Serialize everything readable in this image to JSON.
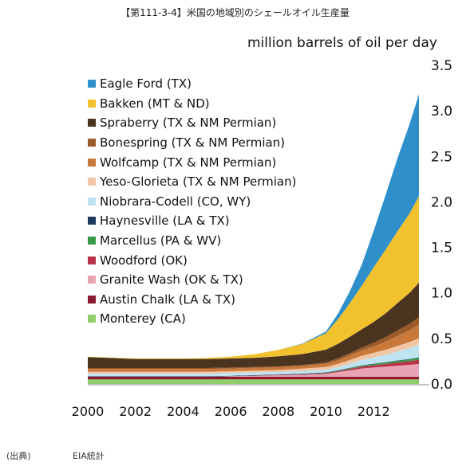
{
  "title": "【第111-3-4】米国の地域別のシェールオイル生産量",
  "source": {
    "label": "(出典)",
    "value": "EIA統計"
  },
  "chart_data": {
    "type": "area",
    "stacked": true,
    "ylabel": "million barrels of oil per day",
    "xlabel": "",
    "xlim": [
      2000,
      2014
    ],
    "ylim": [
      0,
      3.5
    ],
    "y_ticks": [
      "0.0",
      "0.5",
      "1.0",
      "1.5",
      "2.0",
      "2.5",
      "3.0",
      "3.5"
    ],
    "x_ticks": [
      "2000",
      "2002",
      "2004",
      "2006",
      "2008",
      "2010",
      "2012"
    ],
    "grid": false,
    "legend_position": "top-left",
    "x": [
      2000,
      2001,
      2002,
      2003,
      2004,
      2005,
      2006,
      2007,
      2008,
      2009,
      2010,
      2010.5,
      2011,
      2011.5,
      2012,
      2012.5,
      2013,
      2013.5,
      2013.9
    ],
    "series": [
      {
        "name": "Monterey (CA)",
        "color": "#8fcf6b",
        "values": [
          0.05,
          0.05,
          0.05,
          0.05,
          0.05,
          0.05,
          0.05,
          0.05,
          0.05,
          0.05,
          0.05,
          0.05,
          0.05,
          0.05,
          0.05,
          0.05,
          0.05,
          0.05,
          0.05
        ]
      },
      {
        "name": "Austin Chalk (LA & TX)",
        "color": "#8b1a2e",
        "values": [
          0.03,
          0.03,
          0.03,
          0.03,
          0.03,
          0.03,
          0.03,
          0.03,
          0.03,
          0.03,
          0.03,
          0.03,
          0.03,
          0.03,
          0.03,
          0.03,
          0.03,
          0.03,
          0.03
        ]
      },
      {
        "name": "Granite Wash (OK & TX)",
        "color": "#e8a4b4",
        "values": [
          0.0,
          0.0,
          0.0,
          0.0,
          0.0,
          0.0,
          0.005,
          0.01,
          0.015,
          0.02,
          0.03,
          0.05,
          0.07,
          0.09,
          0.1,
          0.11,
          0.12,
          0.13,
          0.14
        ]
      },
      {
        "name": "Woodford (OK)",
        "color": "#b8324a",
        "values": [
          0.0,
          0.0,
          0.0,
          0.0,
          0.0,
          0.0,
          0.0,
          0.002,
          0.004,
          0.006,
          0.008,
          0.01,
          0.015,
          0.02,
          0.025,
          0.03,
          0.035,
          0.04,
          0.045
        ]
      },
      {
        "name": "Marcellus (PA & WV)",
        "color": "#3a9a4a",
        "values": [
          0.0,
          0.0,
          0.0,
          0.0,
          0.0,
          0.0,
          0.0,
          0.0,
          0.0,
          0.002,
          0.004,
          0.006,
          0.008,
          0.01,
          0.012,
          0.015,
          0.018,
          0.02,
          0.022
        ]
      },
      {
        "name": "Haynesville (LA & TX)",
        "color": "#1b3a5c",
        "values": [
          0.005,
          0.005,
          0.005,
          0.005,
          0.005,
          0.005,
          0.005,
          0.005,
          0.005,
          0.005,
          0.005,
          0.005,
          0.005,
          0.005,
          0.005,
          0.005,
          0.005,
          0.005,
          0.005
        ]
      },
      {
        "name": "Niobrara-Codell (CO, WY)",
        "color": "#bfe3f0",
        "values": [
          0.03,
          0.03,
          0.03,
          0.03,
          0.03,
          0.03,
          0.03,
          0.03,
          0.03,
          0.03,
          0.03,
          0.035,
          0.045,
          0.06,
          0.07,
          0.08,
          0.1,
          0.12,
          0.14
        ]
      },
      {
        "name": "Yeso-Glorieta (TX & NM Permian)",
        "color": "#f2c6a4",
        "values": [
          0.02,
          0.02,
          0.02,
          0.02,
          0.02,
          0.02,
          0.02,
          0.02,
          0.02,
          0.025,
          0.03,
          0.035,
          0.04,
          0.045,
          0.05,
          0.055,
          0.06,
          0.065,
          0.07
        ]
      },
      {
        "name": "Wolfcamp (TX & NM Permian)",
        "color": "#c8783a",
        "values": [
          0.03,
          0.03,
          0.03,
          0.03,
          0.03,
          0.03,
          0.03,
          0.03,
          0.03,
          0.03,
          0.035,
          0.04,
          0.05,
          0.06,
          0.07,
          0.09,
          0.11,
          0.13,
          0.15
        ]
      },
      {
        "name": "Bonespring (TX & NM Permian)",
        "color": "#9a5a2a",
        "values": [
          0.01,
          0.01,
          0.01,
          0.01,
          0.01,
          0.01,
          0.01,
          0.01,
          0.01,
          0.01,
          0.015,
          0.02,
          0.025,
          0.03,
          0.04,
          0.05,
          0.06,
          0.07,
          0.08
        ]
      },
      {
        "name": "Spraberry (TX & NM Permian)",
        "color": "#4a3420",
        "values": [
          0.12,
          0.11,
          0.1,
          0.1,
          0.1,
          0.1,
          0.1,
          0.1,
          0.11,
          0.12,
          0.14,
          0.16,
          0.18,
          0.2,
          0.23,
          0.26,
          0.3,
          0.34,
          0.38
        ]
      },
      {
        "name": "Bakken (MT & ND)",
        "color": "#f2c12e",
        "values": [
          0.005,
          0.005,
          0.005,
          0.005,
          0.005,
          0.01,
          0.02,
          0.04,
          0.07,
          0.11,
          0.18,
          0.27,
          0.37,
          0.48,
          0.6,
          0.7,
          0.79,
          0.87,
          0.95
        ]
      },
      {
        "name": "Eagle Ford (TX)",
        "color": "#2e8fcb",
        "values": [
          0.0,
          0.0,
          0.0,
          0.0,
          0.0,
          0.0,
          0.0,
          0.0,
          0.0,
          0.005,
          0.02,
          0.06,
          0.13,
          0.23,
          0.4,
          0.6,
          0.8,
          0.98,
          1.12
        ]
      }
    ]
  }
}
